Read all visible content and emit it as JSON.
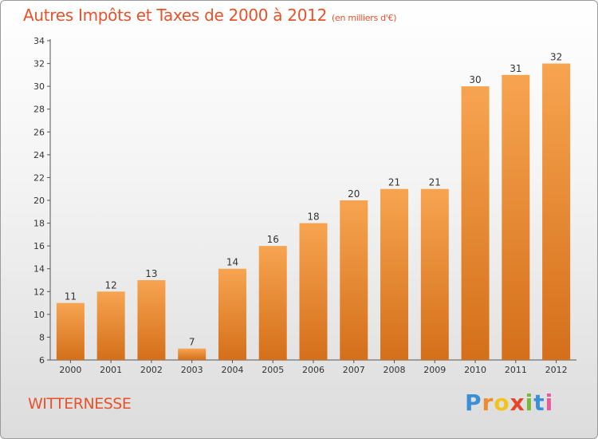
{
  "chart_data": {
    "type": "bar",
    "title": "Autres Impôts et Taxes de 2000 à 2012",
    "subtitle": "(en milliers d'€)",
    "xlabel": "",
    "ylabel": "",
    "categories": [
      "2000",
      "2001",
      "2002",
      "2003",
      "2004",
      "2005",
      "2006",
      "2007",
      "2008",
      "2009",
      "2010",
      "2011",
      "2012"
    ],
    "values": [
      11,
      12,
      13,
      7,
      14,
      16,
      18,
      20,
      21,
      21,
      30,
      31,
      32
    ],
    "ylim": [
      6,
      34
    ],
    "yticks": [
      6,
      8,
      10,
      12,
      14,
      16,
      18,
      20,
      22,
      24,
      26,
      28,
      30,
      32,
      34
    ],
    "grid": false,
    "legend": "none",
    "colors": {
      "bar_light": "#f7a450",
      "bar_dark": "#d46f1a",
      "title": "#e8522a"
    }
  },
  "commune": "WITTERNESSE",
  "logo": {
    "letters": [
      "P",
      "r",
      "o",
      "x",
      "i",
      "t",
      "i"
    ],
    "colors": [
      "#3a8fd6",
      "#f08a2a",
      "#f0c419",
      "#e8442a",
      "#7ab83a",
      "#3a8fd6",
      "#e85a9a"
    ]
  }
}
